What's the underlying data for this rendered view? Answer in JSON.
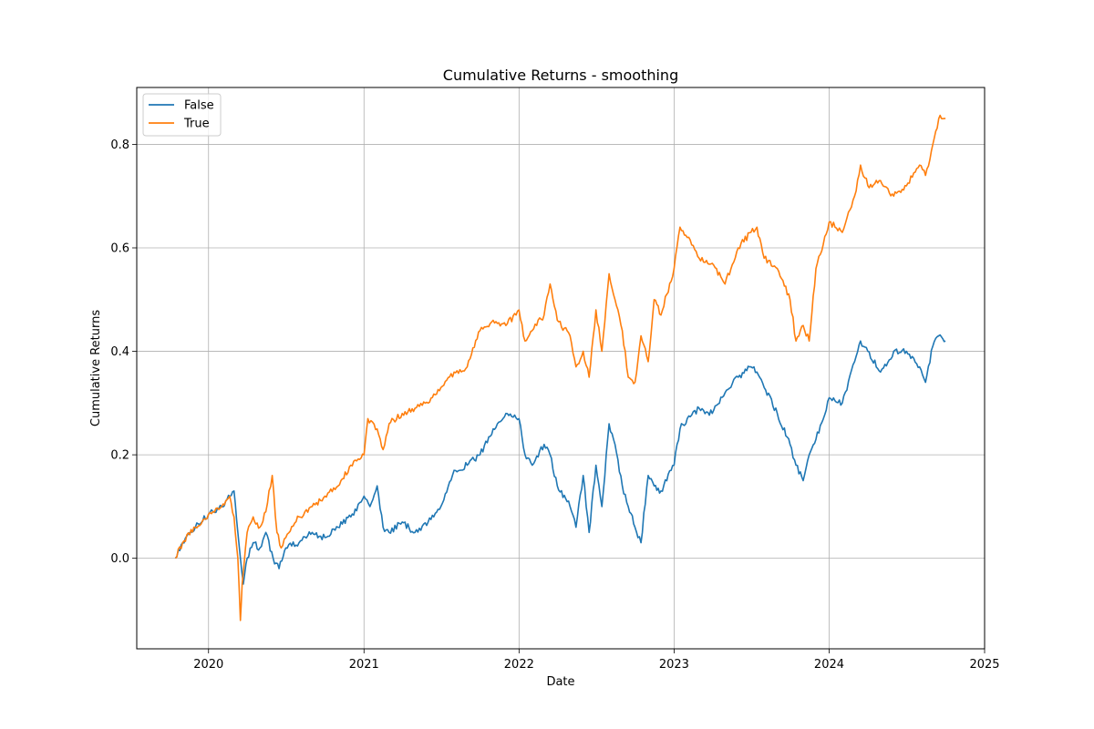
{
  "chart_data": {
    "type": "line",
    "title": "Cumulative Returns - smoothing",
    "xlabel": "Date",
    "ylabel": "Cumulative Returns",
    "xlim": [
      "2019-07-16",
      "2025-01-01"
    ],
    "ylim": [
      -0.175,
      0.91
    ],
    "x_ticks": [
      "2020",
      "2021",
      "2022",
      "2023",
      "2024",
      "2025"
    ],
    "y_ticks": [
      "0.0",
      "0.2",
      "0.4",
      "0.6",
      "0.8"
    ],
    "grid": true,
    "legend_position": "top-left",
    "series": [
      {
        "name": "False",
        "color": "#1f77b4",
        "x": [
          "2019-10-15",
          "2019-11-01",
          "2019-12-01",
          "2020-01-01",
          "2020-02-01",
          "2020-02-20",
          "2020-03-01",
          "2020-03-10",
          "2020-03-16",
          "2020-03-23",
          "2020-04-01",
          "2020-04-15",
          "2020-05-01",
          "2020-05-15",
          "2020-06-01",
          "2020-06-15",
          "2020-07-01",
          "2020-08-01",
          "2020-09-01",
          "2020-10-01",
          "2020-11-01",
          "2020-12-01",
          "2021-01-01",
          "2021-01-15",
          "2021-02-01",
          "2021-02-15",
          "2021-03-01",
          "2021-04-01",
          "2021-05-01",
          "2021-06-01",
          "2021-07-01",
          "2021-08-01",
          "2021-09-01",
          "2021-10-01",
          "2021-11-01",
          "2021-12-01",
          "2022-01-01",
          "2022-01-15",
          "2022-02-01",
          "2022-03-01",
          "2022-03-15",
          "2022-04-01",
          "2022-05-01",
          "2022-05-15",
          "2022-06-01",
          "2022-06-15",
          "2022-07-01",
          "2022-07-15",
          "2022-08-01",
          "2022-08-15",
          "2022-09-01",
          "2022-09-15",
          "2022-10-01",
          "2022-10-15",
          "2022-11-01",
          "2022-11-15",
          "2022-12-01",
          "2023-01-01",
          "2023-01-15",
          "2023-02-01",
          "2023-03-01",
          "2023-04-01",
          "2023-05-01",
          "2023-06-01",
          "2023-07-01",
          "2023-07-15",
          "2023-08-01",
          "2023-09-01",
          "2023-10-01",
          "2023-10-15",
          "2023-11-01",
          "2023-11-15",
          "2023-12-01",
          "2024-01-01",
          "2024-02-01",
          "2024-03-01",
          "2024-03-15",
          "2024-04-01",
          "2024-05-01",
          "2024-06-01",
          "2024-07-01",
          "2024-08-01",
          "2024-08-15",
          "2024-09-01",
          "2024-09-15",
          "2024-10-01"
        ],
        "values": [
          0.0,
          0.03,
          0.06,
          0.085,
          0.1,
          0.12,
          0.13,
          0.05,
          0.0,
          -0.05,
          0.0,
          0.03,
          0.02,
          0.05,
          0.0,
          -0.02,
          0.02,
          0.03,
          0.05,
          0.04,
          0.06,
          0.08,
          0.12,
          0.1,
          0.14,
          0.06,
          0.05,
          0.07,
          0.05,
          0.07,
          0.1,
          0.17,
          0.18,
          0.2,
          0.25,
          0.28,
          0.27,
          0.2,
          0.18,
          0.22,
          0.2,
          0.14,
          0.1,
          0.06,
          0.16,
          0.05,
          0.18,
          0.1,
          0.26,
          0.22,
          0.14,
          0.1,
          0.06,
          0.03,
          0.16,
          0.14,
          0.13,
          0.18,
          0.25,
          0.27,
          0.29,
          0.28,
          0.32,
          0.35,
          0.37,
          0.36,
          0.33,
          0.28,
          0.22,
          0.18,
          0.15,
          0.2,
          0.23,
          0.31,
          0.3,
          0.38,
          0.42,
          0.4,
          0.36,
          0.4,
          0.4,
          0.37,
          0.34,
          0.41,
          0.43,
          0.42
        ]
      },
      {
        "name": "True",
        "color": "#ff7f0e",
        "x": [
          "2019-10-15",
          "2019-11-01",
          "2019-12-01",
          "2020-01-01",
          "2020-02-01",
          "2020-02-20",
          "2020-03-01",
          "2020-03-10",
          "2020-03-16",
          "2020-03-20",
          "2020-04-01",
          "2020-04-15",
          "2020-05-01",
          "2020-05-15",
          "2020-05-30",
          "2020-06-10",
          "2020-06-20",
          "2020-07-01",
          "2020-08-01",
          "2020-09-01",
          "2020-10-01",
          "2020-11-01",
          "2020-12-01",
          "2021-01-01",
          "2021-01-10",
          "2021-02-01",
          "2021-02-15",
          "2021-03-01",
          "2021-04-01",
          "2021-05-01",
          "2021-06-01",
          "2021-07-01",
          "2021-08-01",
          "2021-09-01",
          "2021-10-01",
          "2021-11-01",
          "2021-12-01",
          "2022-01-01",
          "2022-01-15",
          "2022-02-01",
          "2022-03-01",
          "2022-03-15",
          "2022-04-01",
          "2022-05-01",
          "2022-05-15",
          "2022-06-01",
          "2022-06-15",
          "2022-07-01",
          "2022-07-15",
          "2022-08-01",
          "2022-08-15",
          "2022-09-01",
          "2022-09-15",
          "2022-10-01",
          "2022-10-15",
          "2022-11-01",
          "2022-11-15",
          "2022-12-01",
          "2023-01-01",
          "2023-01-15",
          "2023-02-01",
          "2023-03-01",
          "2023-04-01",
          "2023-05-01",
          "2023-06-01",
          "2023-07-01",
          "2023-07-15",
          "2023-08-01",
          "2023-09-01",
          "2023-10-01",
          "2023-10-15",
          "2023-11-01",
          "2023-11-15",
          "2023-12-01",
          "2024-01-01",
          "2024-02-01",
          "2024-03-01",
          "2024-03-15",
          "2024-04-01",
          "2024-05-01",
          "2024-06-01",
          "2024-07-01",
          "2024-08-01",
          "2024-08-15",
          "2024-09-01",
          "2024-09-15",
          "2024-10-01"
        ],
        "values": [
          0.0,
          0.03,
          0.06,
          0.085,
          0.1,
          0.12,
          0.08,
          0.0,
          -0.12,
          -0.05,
          0.05,
          0.08,
          0.06,
          0.09,
          0.16,
          0.05,
          0.02,
          0.04,
          0.08,
          0.1,
          0.12,
          0.14,
          0.18,
          0.2,
          0.27,
          0.25,
          0.21,
          0.26,
          0.28,
          0.29,
          0.3,
          0.33,
          0.36,
          0.37,
          0.44,
          0.46,
          0.45,
          0.48,
          0.42,
          0.44,
          0.47,
          0.53,
          0.46,
          0.43,
          0.37,
          0.4,
          0.35,
          0.48,
          0.4,
          0.55,
          0.5,
          0.44,
          0.35,
          0.34,
          0.43,
          0.38,
          0.5,
          0.47,
          0.56,
          0.64,
          0.62,
          0.58,
          0.57,
          0.53,
          0.6,
          0.63,
          0.64,
          0.58,
          0.56,
          0.5,
          0.42,
          0.45,
          0.42,
          0.56,
          0.65,
          0.63,
          0.7,
          0.76,
          0.72,
          0.73,
          0.7,
          0.72,
          0.76,
          0.74,
          0.8,
          0.85,
          0.85
        ]
      }
    ]
  }
}
